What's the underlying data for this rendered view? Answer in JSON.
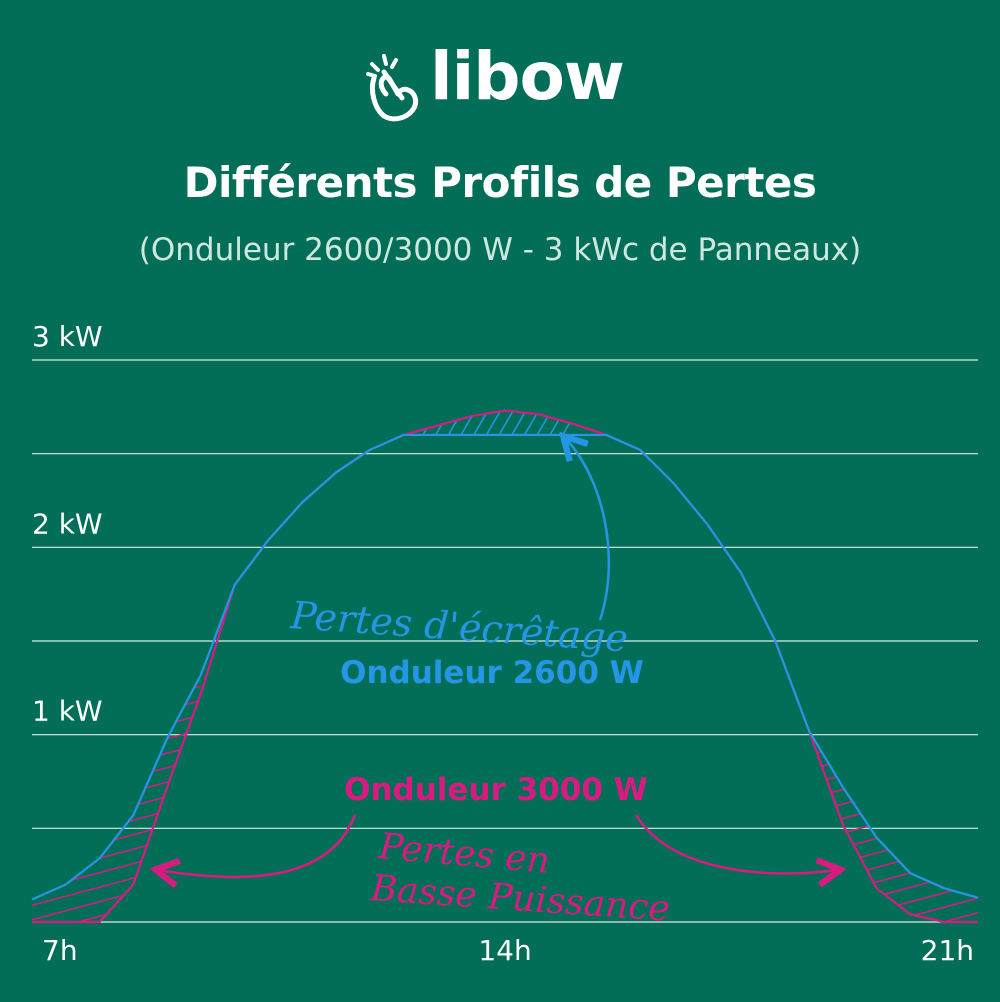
{
  "logo": {
    "text": "libow"
  },
  "header": {
    "title": "Différents Profils de Pertes",
    "subtitle": "(Onduleur 2600/3000 W - 3 kWc de Panneaux)"
  },
  "annotations": {
    "inv2600_label": "Onduleur 2600 W",
    "inv3000_label": "Onduleur 3000 W",
    "clipping_loss": "Pertes d'écrêtage",
    "low_power_loss_line1": "Pertes en",
    "low_power_loss_line2": "Basse Puissance"
  },
  "colors": {
    "background": "#036e58",
    "inv2600": "#2596e6",
    "inv3000": "#d91a80",
    "grid": "#dcebe5",
    "text": "#ffffff"
  },
  "chart_data": {
    "type": "area",
    "title": "Différents Profils de Pertes",
    "subtitle": "(Onduleur 2600/3000 W - 3 kWc de Panneaux)",
    "xlabel": "",
    "ylabel": "",
    "x_ticks": [
      {
        "x": 7,
        "label": "7h"
      },
      {
        "x": 14,
        "label": "14h"
      },
      {
        "x": 21,
        "label": "21h"
      }
    ],
    "y_ticks": [
      {
        "y": 1,
        "label": "1 kW"
      },
      {
        "y": 2,
        "label": "2 kW"
      },
      {
        "y": 3,
        "label": "3 kW"
      }
    ],
    "xlim": [
      7,
      21
    ],
    "ylim": [
      0,
      3
    ],
    "grid": true,
    "gridlines_y": [
      0.5,
      1,
      1.5,
      2,
      2.5,
      3
    ],
    "series": [
      {
        "name": "Onduleur 2600 W",
        "x": [
          7,
          7.5,
          8,
          8.5,
          9,
          9.5,
          10,
          10.5,
          11,
          11.5,
          12,
          12.5,
          13,
          13.5,
          14,
          14.5,
          15,
          15.5,
          16,
          16.5,
          17,
          17.5,
          18,
          18.5,
          19,
          19.5,
          20,
          20.5,
          21
        ],
        "y": [
          0.12,
          0.2,
          0.34,
          0.57,
          0.98,
          1.32,
          1.8,
          2.04,
          2.24,
          2.4,
          2.52,
          2.6,
          2.6,
          2.6,
          2.6,
          2.6,
          2.6,
          2.6,
          2.52,
          2.34,
          2.12,
          1.86,
          1.5,
          1.02,
          0.72,
          0.45,
          0.26,
          0.18,
          0.13
        ]
      },
      {
        "name": "Onduleur 3000 W",
        "x": [
          7,
          7.5,
          8,
          8.5,
          9,
          9.5,
          10,
          10.5,
          11,
          11.5,
          12,
          12.5,
          13,
          13.5,
          14,
          14.5,
          15,
          15.5,
          16,
          16.5,
          17,
          17.5,
          18,
          18.5,
          19,
          19.5,
          20,
          20.5,
          21
        ],
        "y": [
          0,
          0,
          0,
          0.2,
          0.72,
          1.22,
          1.8,
          2.04,
          2.24,
          2.4,
          2.52,
          2.6,
          2.65,
          2.7,
          2.73,
          2.71,
          2.66,
          2.6,
          2.52,
          2.34,
          2.12,
          1.86,
          1.5,
          1.02,
          0.52,
          0.18,
          0.04,
          0,
          0
        ]
      }
    ]
  }
}
